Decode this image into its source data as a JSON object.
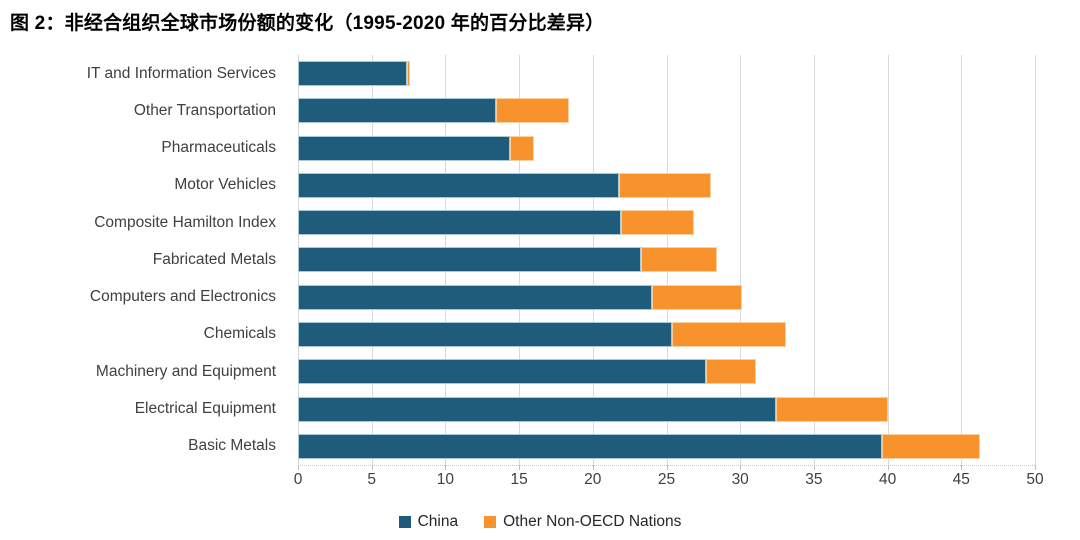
{
  "chart_data": {
    "type": "bar",
    "orientation": "horizontal",
    "stacked": true,
    "title": "图 2：非经合组织全球市场份额的变化（1995-2020 年的百分比差异）",
    "categories": [
      "IT and Information Services",
      "Other Transportation",
      "Pharmaceuticals",
      "Motor Vehicles",
      "Composite Hamilton Index",
      "Fabricated Metals",
      "Computers and Electronics",
      "Chemicals",
      "Machinery and Equipment",
      "Electrical Equipment",
      "Basic Metals"
    ],
    "series": [
      {
        "name": "China",
        "color": "#1f5c7c",
        "border_color": "#a9c8d8",
        "values": [
          7.4,
          13.4,
          14.4,
          21.8,
          21.9,
          23.3,
          24.0,
          25.4,
          27.7,
          32.4,
          39.6
        ]
      },
      {
        "name": "Other Non-OECD Nations",
        "color": "#f7922c",
        "border_color": "#fbd0a0",
        "values": [
          0.2,
          5.0,
          1.6,
          6.2,
          5.0,
          5.1,
          6.1,
          7.7,
          3.4,
          7.6,
          6.7
        ]
      }
    ],
    "totals": [
      7.6,
      18.4,
      16.0,
      28.0,
      26.9,
      28.4,
      30.1,
      33.1,
      31.1,
      40.0,
      46.3
    ],
    "xlim": [
      0,
      50
    ],
    "xticks": [
      0,
      5,
      10,
      15,
      20,
      25,
      30,
      35,
      40,
      45,
      50
    ],
    "grid": "vertical",
    "legend_position": "bottom-center",
    "colors": {
      "gridline": "#d9d9d9",
      "axis_line": "#c9c9c9",
      "tick_text": "#404040",
      "label_text": "#404040",
      "title_text": "#000000",
      "background": "#ffffff"
    }
  }
}
